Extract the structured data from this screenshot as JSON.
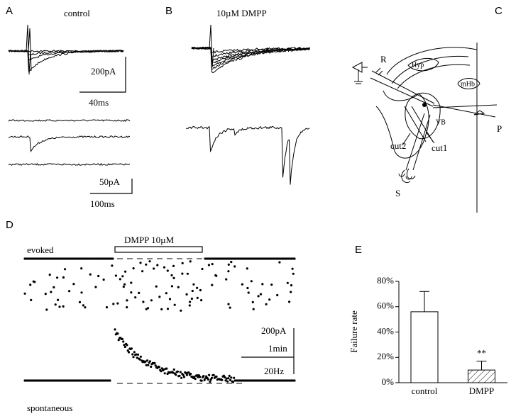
{
  "panel_a": {
    "label": "A",
    "title": "control",
    "scale_y": "200pA",
    "scale_x": "40ms",
    "scale_y2": "50pA",
    "scale_x2": "100ms"
  },
  "panel_b": {
    "label": "B",
    "title": "10µM DMPP"
  },
  "panel_c": {
    "label": "C",
    "r": "R",
    "hyp": "Hyp",
    "mhb": "mHb",
    "vb": "VB",
    "p": "P",
    "cut2": "cut2",
    "cut1": "cut1",
    "s": "S"
  },
  "panel_d": {
    "label": "D",
    "bar_label": "DMPP 10µM",
    "evoked": "evoked",
    "spontaneous": "spontaneous",
    "scale_amp": "200pA",
    "scale_time": "1min",
    "scale_freq": "20Hz"
  },
  "chart_data": {
    "type": "bar",
    "label": "E",
    "y_label": "Failure rate",
    "categories": [
      "control",
      "DMPP"
    ],
    "values": [
      56,
      10
    ],
    "errors": [
      16,
      7
    ],
    "annotations": [
      "",
      "**"
    ],
    "ylim": [
      0,
      80
    ],
    "yticks": [
      {
        "value": 0,
        "label": "0%"
      },
      {
        "value": 20,
        "label": "20%"
      },
      {
        "value": 40,
        "label": "40%"
      },
      {
        "value": 60,
        "label": "60%"
      },
      {
        "value": 80,
        "label": "80%"
      }
    ]
  }
}
